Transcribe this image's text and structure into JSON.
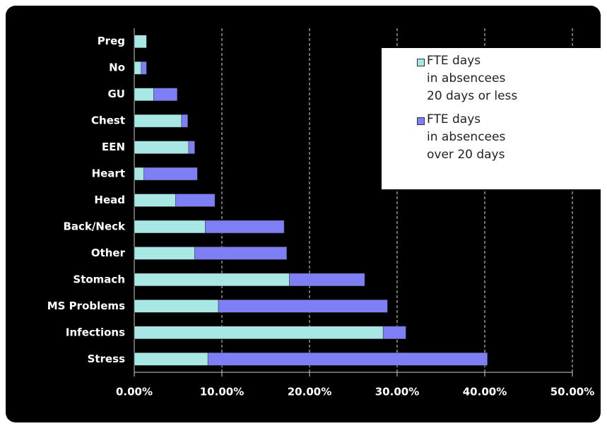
{
  "chart_data": {
    "type": "stacked-barh",
    "categories": [
      "Preg",
      "No",
      "GU",
      "Chest",
      "EEN",
      "Heart",
      "Head",
      "Back/Neck",
      "Other",
      "Stomach",
      "MS Problems",
      "Infections",
      "Stress"
    ],
    "series": [
      {
        "name": "FTE days\nin absencees\n20 days or less",
        "color": "#a9e7e4",
        "values": [
          1.4,
          0.8,
          2.2,
          5.4,
          6.2,
          1.1,
          4.7,
          8.1,
          6.9,
          17.7,
          9.6,
          28.4,
          8.4
        ]
      },
      {
        "name": "FTE days\nin absencees\nover 20 days",
        "color": "#7f7ff5",
        "values": [
          0,
          0.6,
          2.7,
          0.7,
          0.7,
          6.1,
          4.5,
          9.0,
          10.5,
          8.6,
          19.3,
          2.6,
          31.9
        ]
      }
    ],
    "xlim": [
      0,
      50
    ],
    "xticks": [
      {
        "value": 0,
        "label": "0.00%"
      },
      {
        "value": 10,
        "label": "10.00%"
      },
      {
        "value": 20,
        "label": "20.00%"
      },
      {
        "value": 30,
        "label": "30.00%"
      },
      {
        "value": 40,
        "label": "40.00%"
      },
      {
        "value": 50,
        "label": "50.00%"
      }
    ],
    "grid": true,
    "legend": "upper right"
  }
}
